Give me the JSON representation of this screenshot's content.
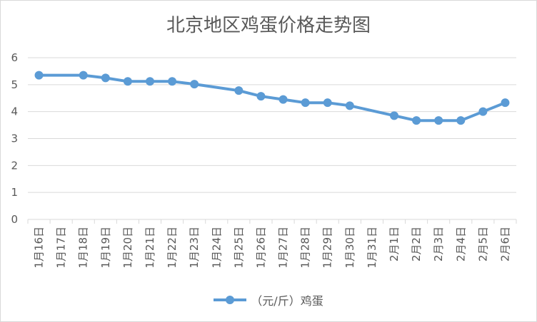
{
  "chart_data": {
    "type": "line",
    "title": "北京地区鸡蛋价格走势图",
    "xlabel": "",
    "ylabel": "",
    "ylim": [
      0,
      6
    ],
    "yticks": [
      "0",
      "1",
      "2",
      "3",
      "4",
      "5",
      "6"
    ],
    "categories": [
      "1月16日",
      "1月17日",
      "1月18日",
      "1月19日",
      "1月20日",
      "1月21日",
      "1月22日",
      "1月23日",
      "1月24日",
      "1月25日",
      "1月26日",
      "1月27日",
      "1月28日",
      "1月29日",
      "1月30日",
      "1月31日",
      "2月1日",
      "2月2日",
      "2月3日",
      "2月4日",
      "2月5日",
      "2月6日"
    ],
    "series": [
      {
        "name": "（元/斤）鸡蛋",
        "color": "#5b9bd5",
        "values": [
          5.35,
          null,
          5.35,
          5.25,
          5.12,
          5.12,
          5.12,
          5.02,
          null,
          4.78,
          4.57,
          4.45,
          4.33,
          4.33,
          4.22,
          null,
          3.85,
          3.67,
          3.67,
          3.67,
          4.0,
          4.33
        ]
      }
    ],
    "grid": true,
    "legend_position": "bottom"
  },
  "colors": {
    "series": "#5b9bd5",
    "gridline": "#d9d9d9",
    "text": "#595959"
  }
}
